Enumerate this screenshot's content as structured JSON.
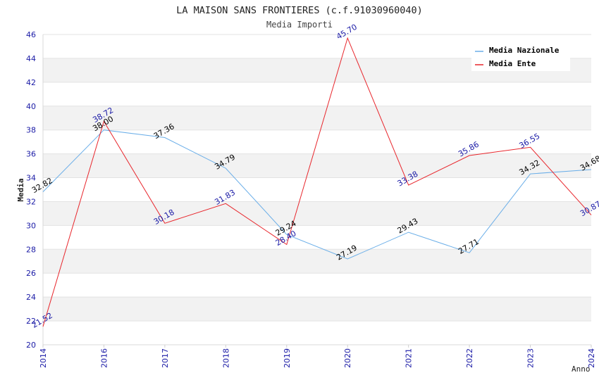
{
  "chart_data": {
    "type": "line",
    "title": "LA MAISON SANS FRONTIERES (c.f.91030960040)",
    "subtitle": "Media Importi",
    "xlabel": "Anno",
    "ylabel": "Media",
    "categories": [
      "2014",
      "2016",
      "2017",
      "2018",
      "2019",
      "2020",
      "2021",
      "2022",
      "2023",
      "2024"
    ],
    "ylim": [
      20,
      46
    ],
    "yticks": [
      20,
      22,
      24,
      26,
      28,
      30,
      32,
      34,
      36,
      38,
      40,
      42,
      44,
      46
    ],
    "ytick_labels": [
      "20",
      "22",
      "24",
      "26",
      "28",
      "30",
      "32",
      "34",
      "36",
      "38",
      "40",
      "42",
      "44",
      "46"
    ],
    "grid": "horizontal alternating bands",
    "legend_position": "top-right",
    "series": [
      {
        "name": "Media Nazionale",
        "color": "#6aaee8",
        "label_color": "#000000",
        "values": [
          32.82,
          38.0,
          37.36,
          34.79,
          29.24,
          27.19,
          29.43,
          27.71,
          34.32,
          34.68
        ],
        "labels": [
          "32.82",
          "38.00",
          "37.36",
          "34.79",
          "29.24",
          "27.19",
          "29.43",
          "27.71",
          "34.32",
          "34.68"
        ]
      },
      {
        "name": "Media Ente",
        "color": "#e8262c",
        "label_color": "#1a1aa6",
        "values": [
          21.52,
          38.72,
          30.18,
          31.83,
          28.4,
          45.7,
          33.38,
          35.86,
          36.55,
          30.87
        ],
        "labels": [
          "21.52",
          "38.72",
          "30.18",
          "31.83",
          "28.40",
          "45.70",
          "33.38",
          "35.86",
          "36.55",
          "30.87"
        ]
      }
    ]
  }
}
